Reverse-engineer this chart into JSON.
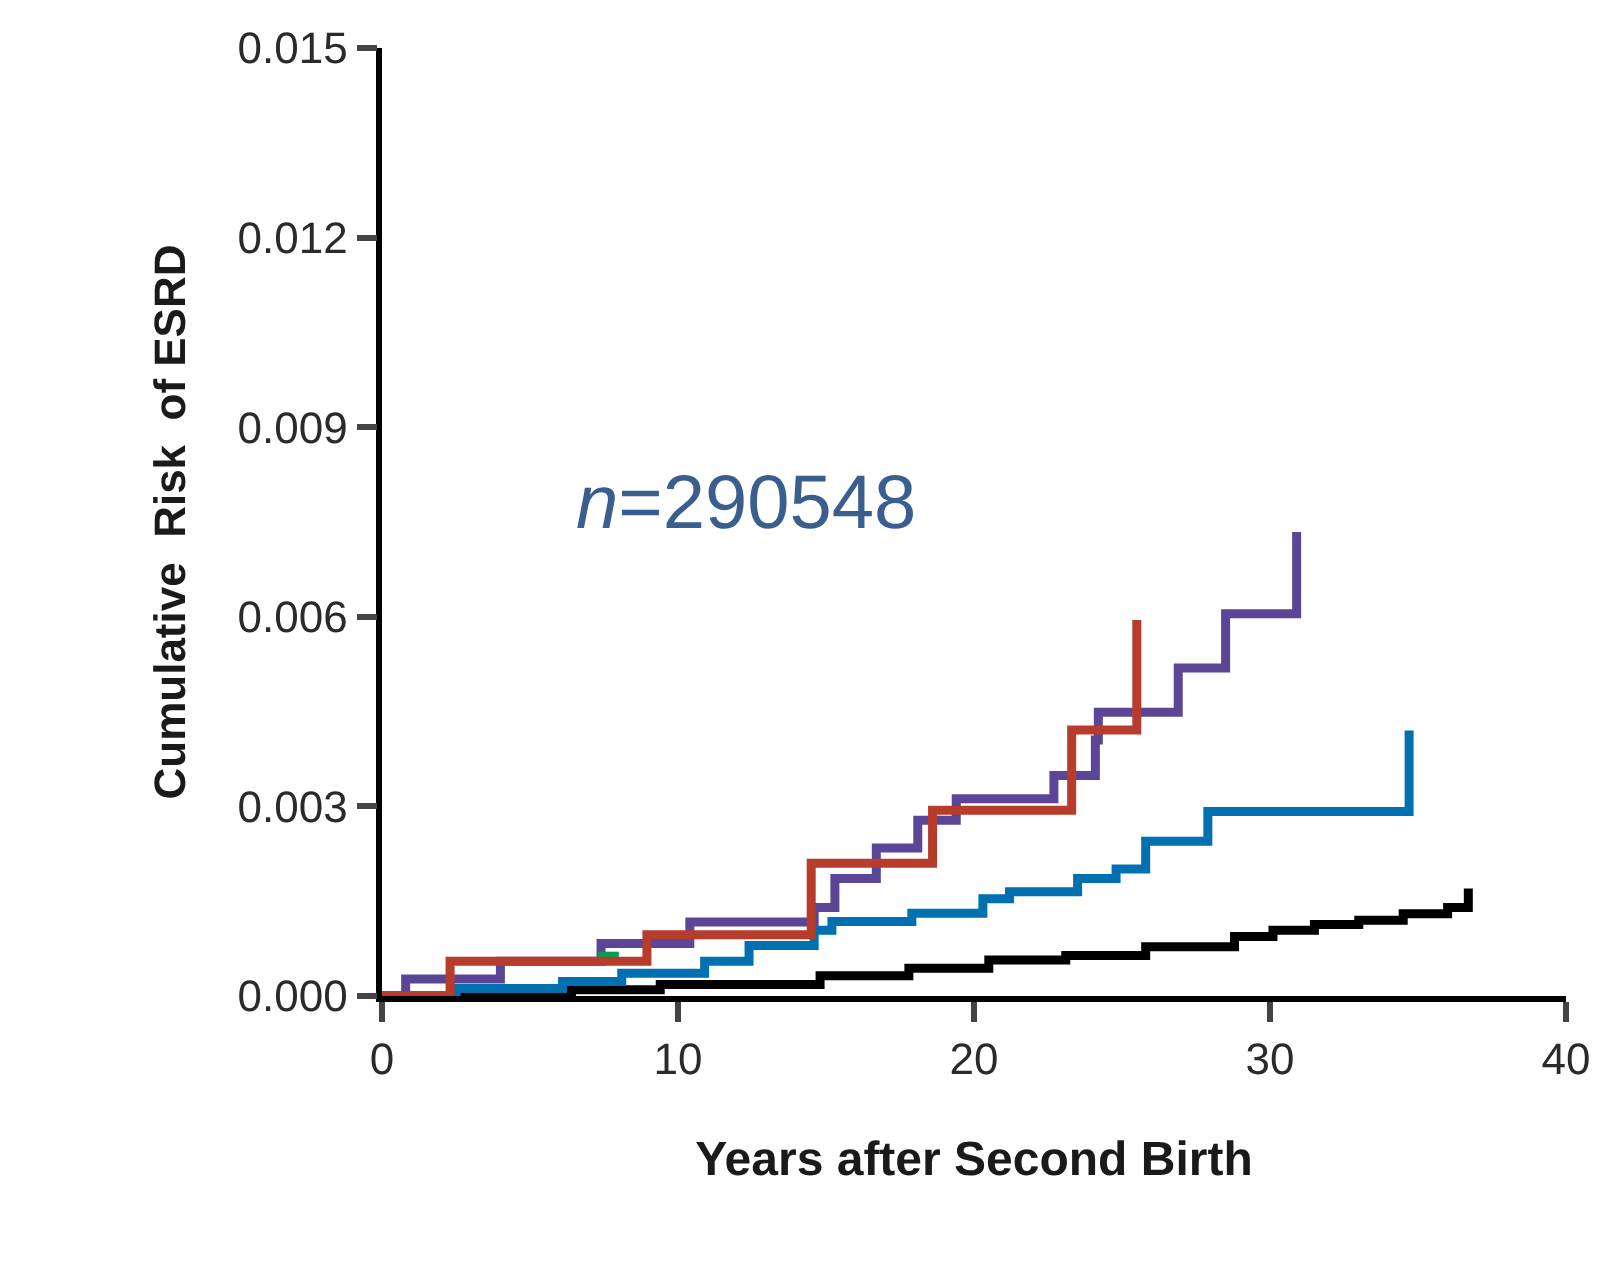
{
  "chart_data": {
    "type": "step",
    "xlabel": "Years after Second Birth",
    "ylabel": "Cumulative  Risk  of ESRD",
    "annotations": [
      "n=290548"
    ],
    "xlim": [
      0,
      40
    ],
    "xticks": [
      0,
      10,
      20,
      30,
      40
    ],
    "ylim": [
      0,
      0.015
    ],
    "yticks": [
      {
        "value": 0,
        "label": "0.000"
      },
      {
        "value": 0.003,
        "label": "0.003"
      },
      {
        "value": 0.006,
        "label": "0.006"
      },
      {
        "value": 0.009,
        "label": "0.009"
      },
      {
        "value": 0.012,
        "label": "0.012"
      },
      {
        "value": 0.015,
        "label": "0.015"
      }
    ],
    "marker": "none",
    "line_style": "solid",
    "series": [
      {
        "color": "#000000",
        "x": [
          0,
          6.4,
          9.4,
          14.8,
          17.8,
          20.5,
          23.1,
          25.8,
          28.8,
          30.1,
          31.5,
          33,
          34.5,
          36,
          36.7
        ],
        "values": [
          0,
          0.0001,
          0.00018,
          0.00032,
          0.00044,
          0.00057,
          0.00064,
          0.00078,
          0.00094,
          0.00104,
          0.00113,
          0.0012,
          0.0013,
          0.0014,
          0.0017
        ]
      },
      {
        "color": "#0070b0",
        "x": [
          0,
          2.5,
          6.1,
          8.1,
          10.9,
          12.4,
          14.6,
          15.2,
          17.9,
          20.3,
          21.2,
          23.5,
          24.8,
          25.8,
          27.9,
          34.7
        ],
        "values": [
          0,
          0.00012,
          0.00023,
          0.00036,
          0.00055,
          0.0008,
          0.00104,
          0.00118,
          0.00131,
          0.00154,
          0.00165,
          0.00186,
          0.00201,
          0.00245,
          0.00292,
          0.0042
        ]
      },
      {
        "color": "#5b4596",
        "x": [
          0,
          0.8,
          4.0,
          7.4,
          10.4,
          14.6,
          15.3,
          16.7,
          18.1,
          19.4,
          22.7,
          24.1,
          24.2,
          26.9,
          28.5,
          30.9
        ],
        "values": [
          0,
          0.00027,
          0.00055,
          0.00083,
          0.00117,
          0.0014,
          0.00186,
          0.00234,
          0.00278,
          0.00312,
          0.00349,
          0.00405,
          0.00449,
          0.00519,
          0.00605,
          0.00734
        ]
      },
      {
        "color": "#00a050",
        "x": [
          7.3,
          8.0
        ],
        "values": [
          0.00063,
          0.00063
        ]
      },
      {
        "color": "#b83c2c",
        "x": [
          0,
          2.3,
          8.95,
          14.5,
          18.6,
          23.3,
          25.5
        ],
        "values": [
          0,
          0.00055,
          0.00097,
          0.0021,
          0.00294,
          0.00421,
          0.00595
        ]
      }
    ]
  }
}
